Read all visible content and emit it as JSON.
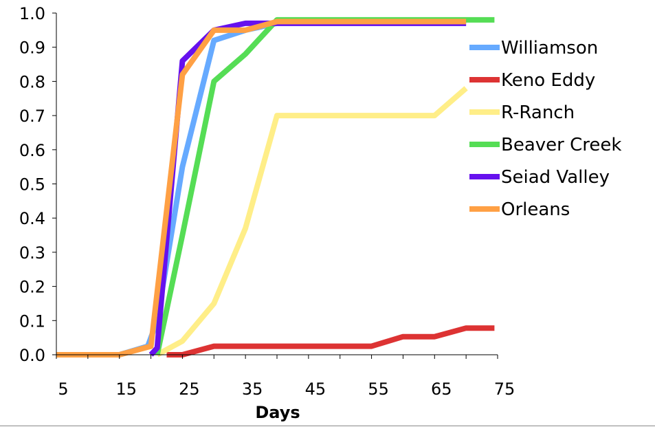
{
  "chart_data": {
    "type": "line",
    "xlabel": "Days",
    "ylabel": "",
    "xlim": [
      5,
      75
    ],
    "ylim": [
      0,
      1
    ],
    "x_ticks": [
      "5",
      "15",
      "25",
      "35",
      "45",
      "55",
      "65",
      "75"
    ],
    "y_ticks": [
      "0.0",
      "0.1",
      "0.2",
      "0.3",
      "0.4",
      "0.5",
      "0.6",
      "0.7",
      "0.8",
      "0.9",
      "1.0"
    ],
    "legend_position": "right",
    "series": [
      {
        "name": "Williamson",
        "color": "#66aaff",
        "points": [
          [
            5,
            0
          ],
          [
            10,
            0
          ],
          [
            15,
            0
          ],
          [
            19.5,
            0.025
          ],
          [
            21,
            0.1
          ],
          [
            25,
            0.55
          ],
          [
            30,
            0.92
          ],
          [
            35,
            0.95
          ],
          [
            40,
            0.97
          ],
          [
            45,
            0.97
          ],
          [
            50,
            0.97
          ],
          [
            55,
            0.97
          ],
          [
            60,
            0.97
          ],
          [
            65,
            0.97
          ],
          [
            70,
            0.97
          ]
        ]
      },
      {
        "name": "Keno Eddy",
        "color": "#dd3333",
        "points": [
          [
            22.5,
            0
          ],
          [
            25,
            0
          ],
          [
            30,
            0.025
          ],
          [
            35,
            0.025
          ],
          [
            40,
            0.025
          ],
          [
            45,
            0.025
          ],
          [
            50,
            0.025
          ],
          [
            55,
            0.025
          ],
          [
            60,
            0.053
          ],
          [
            65,
            0.053
          ],
          [
            70,
            0.078
          ],
          [
            74.5,
            0.078
          ]
        ]
      },
      {
        "name": "R-Ranch",
        "color": "#ffee88",
        "points": [
          [
            21,
            0
          ],
          [
            25,
            0.04
          ],
          [
            30,
            0.15
          ],
          [
            35,
            0.37
          ],
          [
            40,
            0.7
          ],
          [
            45,
            0.7
          ],
          [
            50,
            0.7
          ],
          [
            55,
            0.7
          ],
          [
            60,
            0.7
          ],
          [
            65,
            0.7
          ],
          [
            70,
            0.78
          ]
        ]
      },
      {
        "name": "Beaver Creek",
        "color": "#55dd55",
        "points": [
          [
            21,
            0
          ],
          [
            25,
            0.35
          ],
          [
            30,
            0.8
          ],
          [
            35,
            0.88
          ],
          [
            40,
            0.98
          ],
          [
            45,
            0.98
          ],
          [
            50,
            0.98
          ],
          [
            55,
            0.98
          ],
          [
            60,
            0.98
          ],
          [
            65,
            0.98
          ],
          [
            70,
            0.98
          ],
          [
            74.5,
            0.98
          ]
        ]
      },
      {
        "name": "Seiad Valley",
        "color": "#6611ee",
        "points": [
          [
            20,
            0
          ],
          [
            21,
            0.02
          ],
          [
            25,
            0.86
          ],
          [
            30,
            0.95
          ],
          [
            35,
            0.97
          ],
          [
            40,
            0.97
          ],
          [
            45,
            0.97
          ],
          [
            50,
            0.97
          ],
          [
            55,
            0.97
          ],
          [
            60,
            0.97
          ],
          [
            65,
            0.97
          ],
          [
            70,
            0.97
          ]
        ]
      },
      {
        "name": "Orleans",
        "color": "#ffa044",
        "points": [
          [
            5,
            0
          ],
          [
            10,
            0
          ],
          [
            15,
            0
          ],
          [
            20,
            0.025
          ],
          [
            25,
            0.82
          ],
          [
            30,
            0.95
          ],
          [
            35,
            0.95
          ],
          [
            40,
            0.975
          ],
          [
            45,
            0.975
          ],
          [
            50,
            0.975
          ],
          [
            55,
            0.975
          ],
          [
            60,
            0.975
          ],
          [
            65,
            0.975
          ],
          [
            70,
            0.975
          ]
        ]
      }
    ]
  }
}
